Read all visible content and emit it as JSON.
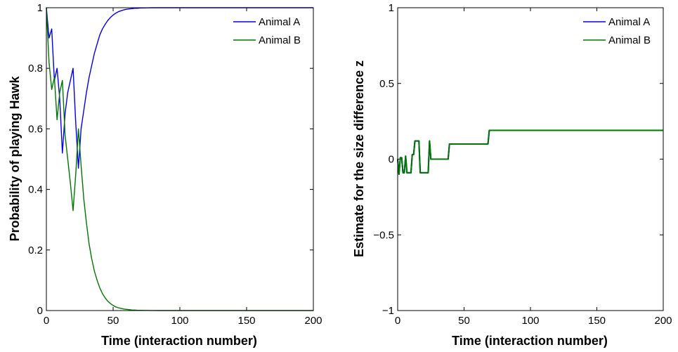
{
  "colors": {
    "animal_a": "#0000ee",
    "animal_b": "#007700"
  },
  "chart_data": [
    {
      "type": "line",
      "xlabel": "Time (interaction number)",
      "ylabel": "Probability of playing Hawk",
      "xlim": [
        0,
        200
      ],
      "ylim": [
        0,
        1
      ],
      "xticks": [
        0,
        50,
        100,
        150,
        200
      ],
      "xtick_labels": [
        "0",
        "50",
        "100",
        "150",
        "200"
      ],
      "yticks": [
        0,
        0.2,
        0.4,
        0.6,
        0.8,
        1
      ],
      "ytick_labels": [
        "0",
        "0.2",
        "0.4",
        "0.6",
        "0.8",
        "1"
      ],
      "grid": false,
      "legend": "top-right",
      "series": [
        {
          "name": "Animal A",
          "color": "#0000ee",
          "x": [
            0,
            2,
            4,
            6,
            8,
            10,
            12,
            14,
            16,
            18,
            20,
            22,
            24,
            26,
            28,
            30,
            32,
            34,
            36,
            38,
            40,
            42,
            44,
            46,
            48,
            50,
            52,
            54,
            56,
            58,
            60,
            62,
            64,
            66,
            68,
            70,
            75,
            80,
            85,
            90,
            100,
            120,
            150,
            200
          ],
          "y": [
            1.0,
            0.9,
            0.93,
            0.76,
            0.8,
            0.7,
            0.52,
            0.65,
            0.72,
            0.76,
            0.8,
            0.62,
            0.47,
            0.6,
            0.66,
            0.72,
            0.77,
            0.81,
            0.85,
            0.88,
            0.91,
            0.93,
            0.945,
            0.958,
            0.968,
            0.976,
            0.982,
            0.987,
            0.99,
            0.993,
            0.995,
            0.996,
            0.997,
            0.998,
            0.998,
            0.999,
            0.9995,
            1.0,
            1.0,
            1.0,
            1.0,
            1.0,
            1.0,
            1.0
          ]
        },
        {
          "name": "Animal B",
          "color": "#007700",
          "x": [
            0,
            2,
            4,
            6,
            8,
            10,
            12,
            14,
            16,
            18,
            20,
            22,
            24,
            26,
            28,
            30,
            32,
            34,
            36,
            38,
            40,
            42,
            44,
            46,
            48,
            50,
            52,
            54,
            56,
            58,
            60,
            62,
            64,
            66,
            68,
            70,
            75,
            80,
            85,
            90,
            100,
            120,
            150,
            200
          ],
          "y": [
            1.0,
            0.82,
            0.73,
            0.77,
            0.63,
            0.72,
            0.76,
            0.58,
            0.5,
            0.42,
            0.33,
            0.45,
            0.6,
            0.48,
            0.37,
            0.29,
            0.22,
            0.17,
            0.13,
            0.1,
            0.075,
            0.056,
            0.042,
            0.031,
            0.023,
            0.017,
            0.012,
            0.009,
            0.007,
            0.005,
            0.004,
            0.003,
            0.002,
            0.0015,
            0.001,
            0.0008,
            0.0004,
            0.0002,
            0.0,
            0.0,
            0.0,
            0.0,
            0.0,
            0.0
          ]
        }
      ]
    },
    {
      "type": "line",
      "xlabel": "Time (interaction number)",
      "ylabel": "Estimate for the size difference z",
      "xlim": [
        0,
        200
      ],
      "ylim": [
        -1,
        1
      ],
      "xticks": [
        0,
        50,
        100,
        150,
        200
      ],
      "xtick_labels": [
        "0",
        "50",
        "100",
        "150",
        "200"
      ],
      "yticks": [
        -1,
        -0.5,
        0,
        0.5,
        1
      ],
      "ytick_labels": [
        "−1",
        "−0.5",
        "0",
        "0.5",
        "1"
      ],
      "grid": false,
      "legend": "top-right",
      "series": [
        {
          "name": "Animal A",
          "color": "#0000ee",
          "x": [
            0,
            1,
            2,
            3,
            4,
            5,
            6,
            7,
            8,
            9,
            10,
            11,
            12,
            13,
            14,
            15,
            16,
            17,
            18,
            19,
            20,
            21,
            22,
            23,
            24,
            25,
            26,
            27,
            28,
            29,
            30,
            36,
            38,
            39,
            40,
            60,
            68,
            69,
            70,
            200
          ],
          "y": [
            0,
            -0.1,
            0.01,
            0.01,
            -0.09,
            -0.09,
            0.02,
            -0.09,
            -0.09,
            -0.09,
            -0.09,
            0.03,
            0.03,
            0.12,
            0.12,
            0.12,
            0.12,
            -0.09,
            -0.09,
            -0.09,
            -0.09,
            -0.09,
            -0.09,
            -0.09,
            0.12,
            0.0,
            0.0,
            0.0,
            0.0,
            0.0,
            0.0,
            0.0,
            0.0,
            0.1,
            0.1,
            0.1,
            0.1,
            0.19,
            0.19,
            0.19
          ]
        },
        {
          "name": "Animal B",
          "color": "#007700",
          "x": [
            0,
            1,
            2,
            3,
            4,
            5,
            6,
            7,
            8,
            9,
            10,
            11,
            12,
            13,
            14,
            15,
            16,
            17,
            18,
            19,
            20,
            21,
            22,
            23,
            24,
            25,
            26,
            27,
            28,
            29,
            30,
            36,
            38,
            39,
            40,
            60,
            68,
            69,
            70,
            200
          ],
          "y": [
            0,
            -0.1,
            0.01,
            0.01,
            -0.09,
            -0.09,
            0.02,
            -0.09,
            -0.09,
            -0.09,
            -0.09,
            0.03,
            0.03,
            0.12,
            0.12,
            0.12,
            0.12,
            -0.09,
            -0.09,
            -0.09,
            -0.09,
            -0.09,
            -0.09,
            -0.09,
            0.12,
            0.0,
            0.0,
            0.0,
            0.0,
            0.0,
            0.0,
            0.0,
            0.0,
            0.1,
            0.1,
            0.1,
            0.1,
            0.19,
            0.19,
            0.19
          ]
        }
      ]
    }
  ]
}
